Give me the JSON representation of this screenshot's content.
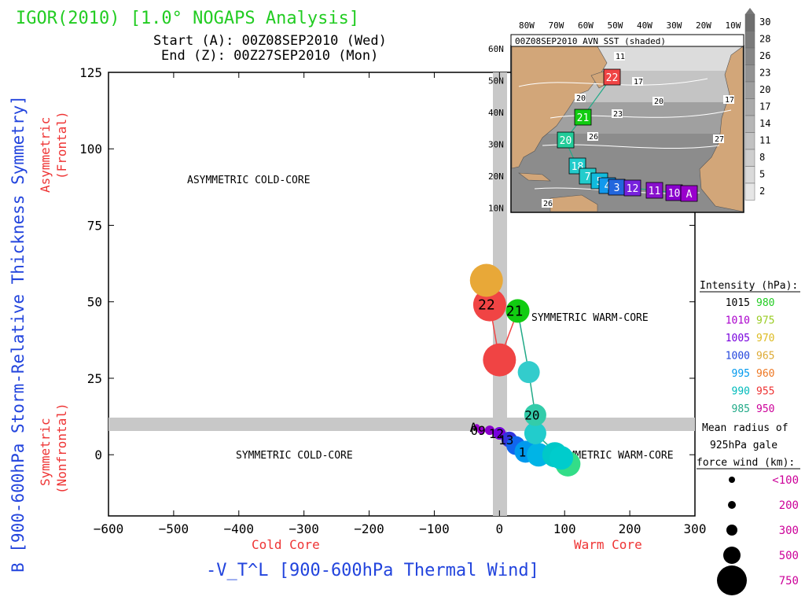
{
  "header": {
    "title": "IGOR(2010) [1.0° NOGAPS Analysis]",
    "start_line": "Start (A): 00Z08SEP2010 (Wed)",
    "end_line": "End (Z): 00Z27SEP2010 (Mon)"
  },
  "colors": {
    "title_green": "#22cc22",
    "axis_blue": "#2244dd",
    "core_red": "#ee3333",
    "gray_band": "#c8c8c8"
  },
  "axes": {
    "ylabel": "B [900-600hPa Storm-Relative Thickness Symmetry]",
    "xlabel": "-V_T^L [900-600hPa Thermal Wind]",
    "x_under_left": "Cold Core",
    "x_under_right": "Warm Core",
    "y_side_top_1": "Asymmetric",
    "y_side_top_2": "(Frontal)",
    "y_side_bottom_1": "Symmetric",
    "y_side_bottom_2": "(Nonfrontal)"
  },
  "quadrants": {
    "upper_left": "ASYMMETRIC COLD-CORE",
    "upper_right": "SYMMETRIC WARM-CORE",
    "lower_left": "SYMMETRIC COLD-CORE",
    "lower_right": "ASYMMETRIC WARM-CORE"
  },
  "chart_data": {
    "type": "scatter",
    "xlim": [
      -600,
      300
    ],
    "ylim": [
      -20,
      125
    ],
    "xticks": [
      -600,
      -500,
      -400,
      -300,
      -200,
      -100,
      0,
      100,
      200,
      300
    ],
    "yticks": [
      0,
      25,
      50,
      75,
      100,
      125
    ],
    "threshold_x": 0,
    "threshold_y": 10,
    "track": [
      {
        "x": -35,
        "y": 9,
        "color": "#9900cc",
        "r": 4,
        "label": "A"
      },
      {
        "x": -28,
        "y": 8,
        "color": "#9900cc",
        "r": 5,
        "label": "09"
      },
      {
        "x": -15,
        "y": 8,
        "color": "#8a00cc",
        "r": 6,
        "label": ""
      },
      {
        "x": 0,
        "y": 7,
        "color": "#7700dd",
        "r": 8,
        "label": "12"
      },
      {
        "x": 15,
        "y": 5,
        "color": "#3333dd",
        "r": 10,
        "label": "13"
      },
      {
        "x": 25,
        "y": 3,
        "color": "#1166ee",
        "r": 12,
        "label": ""
      },
      {
        "x": 40,
        "y": 1,
        "color": "#0099ee",
        "r": 14,
        "label": "1"
      },
      {
        "x": 60,
        "y": 0,
        "color": "#00b4e6",
        "r": 15,
        "label": ""
      },
      {
        "x": 85,
        "y": 0,
        "color": "#00c8c8",
        "r": 16,
        "label": ""
      },
      {
        "x": 105,
        "y": -3,
        "color": "#33dd88",
        "r": 16,
        "label": ""
      },
      {
        "x": 95,
        "y": -1,
        "color": "#00cccc",
        "r": 15,
        "label": ""
      },
      {
        "x": 55,
        "y": 7,
        "color": "#22cccc",
        "r": 14,
        "label": ""
      },
      {
        "x": 55,
        "y": 13,
        "color": "#33ccaa",
        "r": 14,
        "label": "20"
      },
      {
        "x": 45,
        "y": 27,
        "color": "#33cccc",
        "r": 14,
        "label": ""
      },
      {
        "x": 28,
        "y": 47,
        "color": "#11cc11",
        "r": 15,
        "label": "21"
      },
      {
        "x": 0,
        "y": 31,
        "color": "#f04444",
        "r": 21,
        "label": ""
      },
      {
        "x": -15,
        "y": 49,
        "color": "#f04444",
        "r": 21,
        "label": "22"
      },
      {
        "x": -20,
        "y": 57,
        "color": "#e8a838",
        "r": 21,
        "label": ""
      }
    ],
    "track_segments_color": [
      "#22aa88",
      "#f04444"
    ]
  },
  "legend": {
    "intensity_title": "Intensity (hPa):",
    "intensity_rows": [
      {
        "a": "1015",
        "a_color": "#000000",
        "b": "980",
        "b_color": "#22cc22"
      },
      {
        "a": "1010",
        "a_color": "#aa00cc",
        "b": "975",
        "b_color": "#99cc22"
      },
      {
        "a": "1005",
        "a_color": "#7700dd",
        "b": "970",
        "b_color": "#ddbb22"
      },
      {
        "a": "1000",
        "a_color": "#2244dd",
        "b": "965",
        "b_color": "#ddaa33"
      },
      {
        "a": "995",
        "a_color": "#0099ee",
        "b": "960",
        "b_color": "#ee7722"
      },
      {
        "a": "990",
        "a_color": "#00bbbb",
        "b": "955",
        "b_color": "#ee3333"
      },
      {
        "a": "985",
        "a_color": "#22aa88",
        "b": "950",
        "b_color": "#cc0099"
      }
    ],
    "radius_title_1": "Mean radius of",
    "radius_title_2": "925hPa gale",
    "radius_title_3": "force wind (km):",
    "radius_rows": [
      {
        "label": "<100",
        "r": 4
      },
      {
        "label": "200",
        "r": 5
      },
      {
        "label": "300",
        "r": 7
      },
      {
        "label": "500",
        "r": 11
      },
      {
        "label": "750",
        "r": 19
      }
    ],
    "radius_label_color": "#cc0099"
  },
  "inset_map": {
    "title": "00Z08SEP2010 AVN SST (shaded)",
    "lon_labels": [
      "80W",
      "70W",
      "60W",
      "50W",
      "40W",
      "30W",
      "20W",
      "10W"
    ],
    "lat_labels": [
      "60N",
      "50N",
      "40N",
      "30N",
      "20N",
      "10N"
    ],
    "colorbar_labels": [
      "30",
      "28",
      "26",
      "23",
      "20",
      "17",
      "14",
      "11",
      "8",
      "5",
      "2"
    ],
    "contour_labels": [
      "11",
      "17",
      "20",
      "20",
      "23",
      "26",
      "26",
      "27",
      "17"
    ],
    "boxes": [
      {
        "label": "22",
        "color": "#f04444"
      },
      {
        "label": "21",
        "color": "#11cc11"
      },
      {
        "label": "20",
        "color": "#22cc99"
      },
      {
        "label": "18",
        "color": "#22cccc"
      },
      {
        "label": "7",
        "color": "#22cccc"
      },
      {
        "label": "5",
        "color": "#11bbdd"
      },
      {
        "label": "4",
        "color": "#1199ee"
      },
      {
        "label": "3",
        "color": "#2266dd"
      },
      {
        "label": "12",
        "color": "#7722dd"
      },
      {
        "label": "11",
        "color": "#8811cc"
      },
      {
        "label": "10",
        "color": "#8800cc"
      },
      {
        "label": "A",
        "color": "#9900cc"
      }
    ]
  }
}
